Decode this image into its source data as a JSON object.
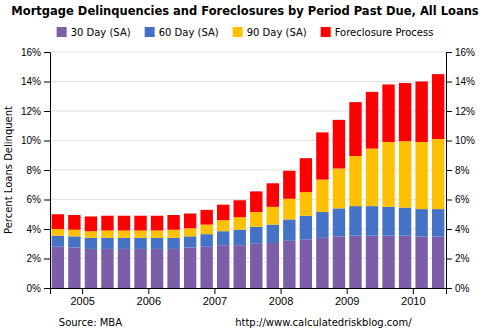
{
  "chart_data": {
    "type": "bar",
    "stacked": true,
    "title": "Mortgage Delinquencies and Foreclosures by Period Past Due, All Loans",
    "y_label": "Percent Loans Delinquent",
    "annotations": [
      "Source: MBA",
      "http://www.calculatedriskblog.com/"
    ],
    "categories": [
      "2005",
      null,
      null,
      null,
      "2006",
      null,
      null,
      null,
      "2007",
      null,
      null,
      null,
      "2008",
      null,
      null,
      null,
      "2009",
      null,
      null,
      null,
      "2010",
      null,
      null,
      null
    ],
    "series": [
      {
        "name": "30 Day (SA)",
        "color": "#7b5ea7",
        "values": [
          2.8,
          2.75,
          2.65,
          2.65,
          2.65,
          2.65,
          2.65,
          2.65,
          2.75,
          2.8,
          2.9,
          2.9,
          3.0,
          3.05,
          3.2,
          3.3,
          3.4,
          3.5,
          3.55,
          3.55,
          3.55,
          3.55,
          3.5,
          3.5
        ]
      },
      {
        "name": "60 Day (SA)",
        "color": "#4472c4",
        "values": [
          0.75,
          0.75,
          0.75,
          0.75,
          0.75,
          0.75,
          0.75,
          0.75,
          0.75,
          0.85,
          0.95,
          1.05,
          1.15,
          1.25,
          1.45,
          1.6,
          1.75,
          1.9,
          2.0,
          2.0,
          1.95,
          1.9,
          1.85,
          1.85
        ]
      },
      {
        "name": "90 Day (SA)",
        "color": "#ffc000",
        "values": [
          0.45,
          0.45,
          0.45,
          0.5,
          0.5,
          0.5,
          0.5,
          0.55,
          0.55,
          0.65,
          0.75,
          0.85,
          1.0,
          1.2,
          1.4,
          1.6,
          2.2,
          2.7,
          3.4,
          3.9,
          4.4,
          4.5,
          4.55,
          4.75
        ]
      },
      {
        "name": "Foreclosure Process",
        "color": "#ff0000",
        "values": [
          1.0,
          1.0,
          1.0,
          1.0,
          1.0,
          1.0,
          1.0,
          1.0,
          1.0,
          1.0,
          1.05,
          1.15,
          1.4,
          1.6,
          1.9,
          2.3,
          3.2,
          3.3,
          3.65,
          3.85,
          3.9,
          3.95,
          4.1,
          4.4
        ]
      }
    ],
    "ylim": [
      0,
      16
    ],
    "yticks": [
      {
        "value": 0,
        "label": "0%"
      },
      {
        "value": 2,
        "label": "2%"
      },
      {
        "value": 4,
        "label": "4%"
      },
      {
        "value": 6,
        "label": "6%"
      },
      {
        "value": 8,
        "label": "8%"
      },
      {
        "value": 10,
        "label": "10%"
      },
      {
        "value": 12,
        "label": "12%"
      },
      {
        "value": 14,
        "label": "14%"
      },
      {
        "value": 16,
        "label": "16%"
      }
    ],
    "y2lim": [
      0,
      16
    ],
    "y2ticks": [
      {
        "value": 0,
        "label": "0%"
      },
      {
        "value": 2,
        "label": "2%"
      },
      {
        "value": 4,
        "label": "4%"
      },
      {
        "value": 6,
        "label": "6%"
      },
      {
        "value": 8,
        "label": "8%"
      },
      {
        "value": 10,
        "label": "10%"
      },
      {
        "value": 12,
        "label": "12%"
      },
      {
        "value": 14,
        "label": "14%"
      },
      {
        "value": 16,
        "label": "16%"
      }
    ],
    "grid": true,
    "legend": "top"
  }
}
